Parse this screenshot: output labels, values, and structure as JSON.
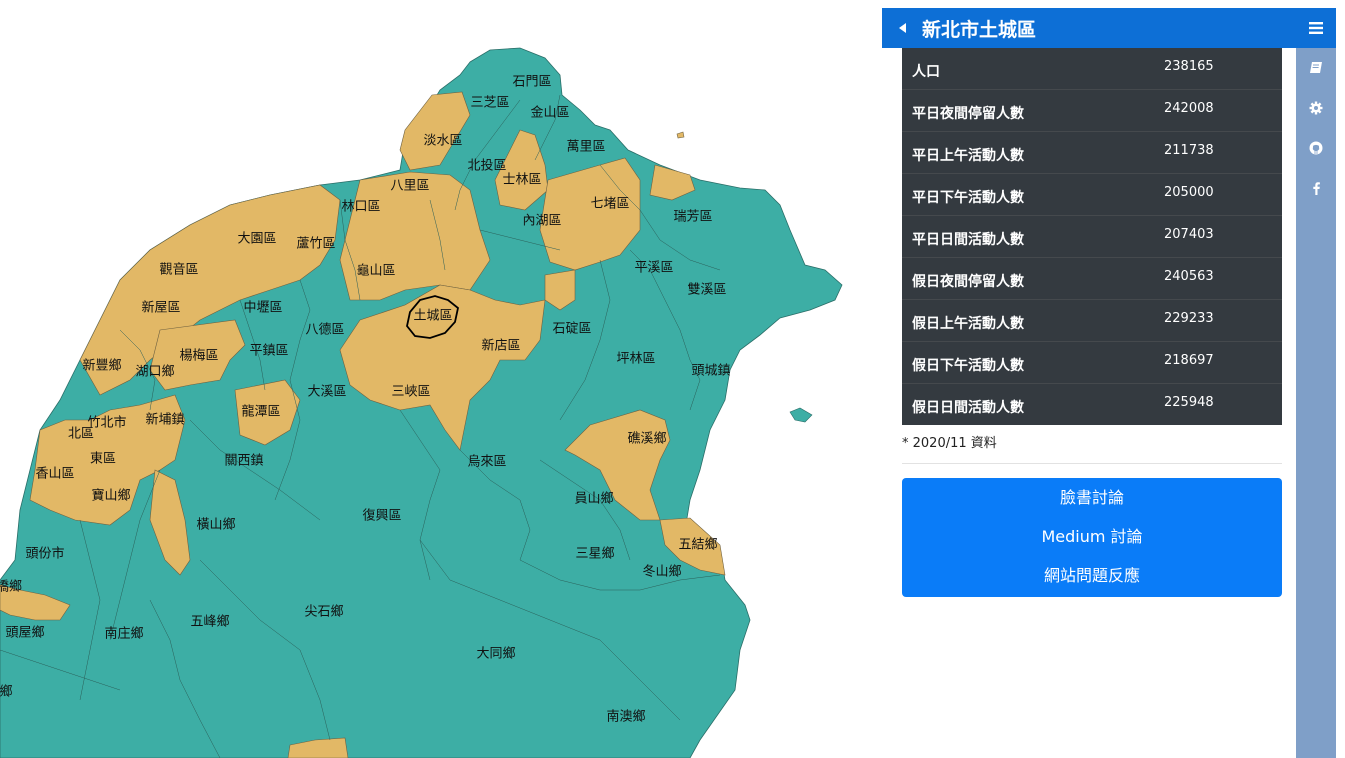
{
  "header": {
    "title": "新北市土城區"
  },
  "stats": [
    {
      "label": "人口",
      "value": "238165"
    },
    {
      "label": "平日夜間停留人數",
      "value": "242008"
    },
    {
      "label": "平日上午活動人數",
      "value": "211738"
    },
    {
      "label": "平日下午活動人數",
      "value": "205000"
    },
    {
      "label": "平日日間活動人數",
      "value": "207403"
    },
    {
      "label": "假日夜間停留人數",
      "value": "240563"
    },
    {
      "label": "假日上午活動人數",
      "value": "229233"
    },
    {
      "label": "假日下午活動人數",
      "value": "218697"
    },
    {
      "label": "假日日間活動人數",
      "value": "225948"
    }
  ],
  "note": "* 2020/11 資料",
  "links": {
    "facebook": "臉書討論",
    "medium": "Medium 討論",
    "report": "網站問題反應"
  },
  "rail_icons": [
    "menu-icon",
    "book-icon",
    "gear-icon",
    "github-icon",
    "facebook-icon"
  ],
  "map": {
    "colors": {
      "teal": "#3daea5",
      "gold": "#e2b866",
      "selected_outline": "#000000"
    },
    "selected_district": "土城區",
    "labels": {
      "shimen": "石門區",
      "sanzhi": "三芝區",
      "jinshan": "金山區",
      "tamsui": "淡水區",
      "wanli": "萬里區",
      "beitou": "北投區",
      "shilin": "士林區",
      "bali": "八里區",
      "linkou": "林口區",
      "qidu": "七堵區",
      "neihu": "內湖區",
      "ruifang": "瑞芳區",
      "dayuan": "大園區",
      "luzhu": "蘆竹區",
      "guishan": "龜山區",
      "guanyin": "觀音區",
      "pingxi": "平溪區",
      "shuangxi": "雙溪區",
      "xinwu": "新屋區",
      "zhongli": "中壢區",
      "bade": "八德區",
      "tucheng": "土城區",
      "shiding": "石碇區",
      "xindian": "新店區",
      "yangmei": "楊梅區",
      "pingzhen": "平鎮區",
      "pinglin": "坪林區",
      "xinfeng": "新豐鄉",
      "hukou": "湖口鄉",
      "daxi": "大溪區",
      "sanxia": "三峽區",
      "toucheng": "頭城鎮",
      "zhubei": "竹北市",
      "xinpu": "新埔鎮",
      "longtan": "龍潭區",
      "beiqu": "北區",
      "jiaoxi": "礁溪鄉",
      "dongqu": "東區",
      "guanxi": "關西鎮",
      "wulai": "烏來區",
      "xiangshan": "香山區",
      "baoshan": "寶山鄉",
      "yuanshan": "員山鄉",
      "fuxing": "復興區",
      "hengshan": "橫山鄉",
      "wujie": "五結鄉",
      "toufen": "頭份市",
      "sanxing": "三星鄉",
      "dongshan": "冬山鄉",
      "qiao": "橋鄉",
      "jianshi": "尖石鄉",
      "wufeng": "五峰鄉",
      "touwu": "頭屋鄉",
      "nanzhuang": "南庄鄉",
      "datong": "大同鄉",
      "xiang": "鄉",
      "nanao": "南澳鄉"
    }
  }
}
